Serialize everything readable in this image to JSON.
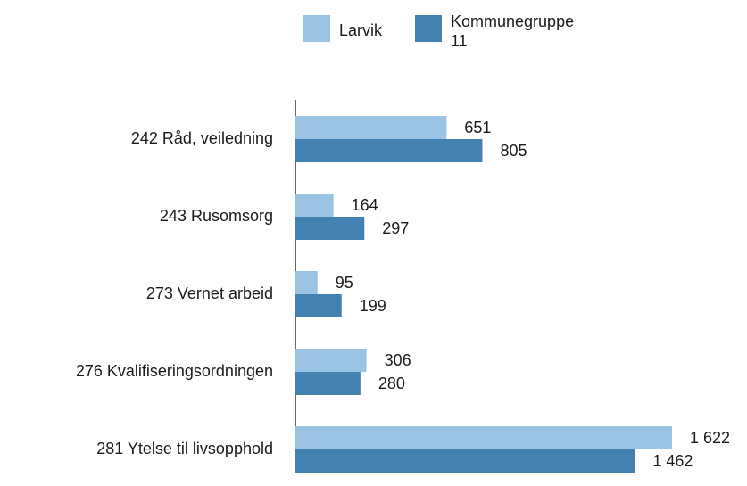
{
  "chart_data": {
    "type": "bar",
    "orientation": "horizontal",
    "categories": [
      "242 Råd, veiledning",
      "243 Rusomsorg",
      "273 Vernet arbeid",
      "276 Kvalifiseringsordningen",
      "281 Ytelse til livsopphold"
    ],
    "series": [
      {
        "name": "Larvik",
        "color": "#9bc4e4",
        "values": [
          651,
          164,
          95,
          306,
          1622
        ],
        "value_labels": [
          "651",
          "164",
          "95",
          "306",
          "1 622"
        ]
      },
      {
        "name": "Kommunegruppe 11",
        "color": "#4281b0",
        "values": [
          805,
          297,
          199,
          280,
          1462
        ],
        "value_labels": [
          "805",
          "297",
          "199",
          "280",
          "1 462"
        ]
      }
    ]
  }
}
